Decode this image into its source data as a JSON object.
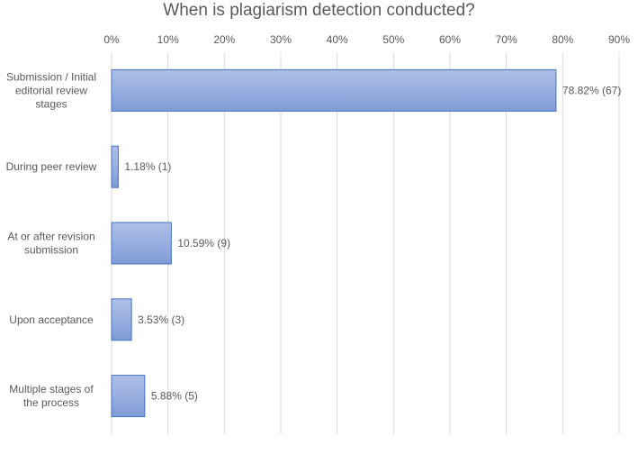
{
  "chart_data": {
    "type": "bar",
    "orientation": "horizontal",
    "title": "When is plagiarism detection conducted?",
    "categories": [
      "Submission / Initial editorial review stages",
      "During peer review",
      "At or after revision submission",
      "Upon acceptance",
      "Multiple stages of the process"
    ],
    "category_lines": [
      [
        "Submission / Initial",
        "editorial review",
        "stages"
      ],
      [
        "During peer review"
      ],
      [
        "At or after revision",
        "submission"
      ],
      [
        "Upon acceptance"
      ],
      [
        "Multiple stages of",
        "the process"
      ]
    ],
    "values": [
      78.82,
      1.18,
      10.59,
      3.53,
      5.88
    ],
    "counts": [
      67,
      1,
      9,
      3,
      5
    ],
    "data_labels": [
      "78.82% (67)",
      "1.18% (1)",
      "10.59% (9)",
      "3.53% (3)",
      "5.88% (5)"
    ],
    "xlim": [
      0,
      90
    ],
    "x_ticks": [
      "0%",
      "10%",
      "20%",
      "30%",
      "40%",
      "50%",
      "60%",
      "70%",
      "80%",
      "90%"
    ],
    "axis_position": "top",
    "grid": true,
    "bar_color": "#8ea9db",
    "bar_edge_color": "#4472c4"
  }
}
